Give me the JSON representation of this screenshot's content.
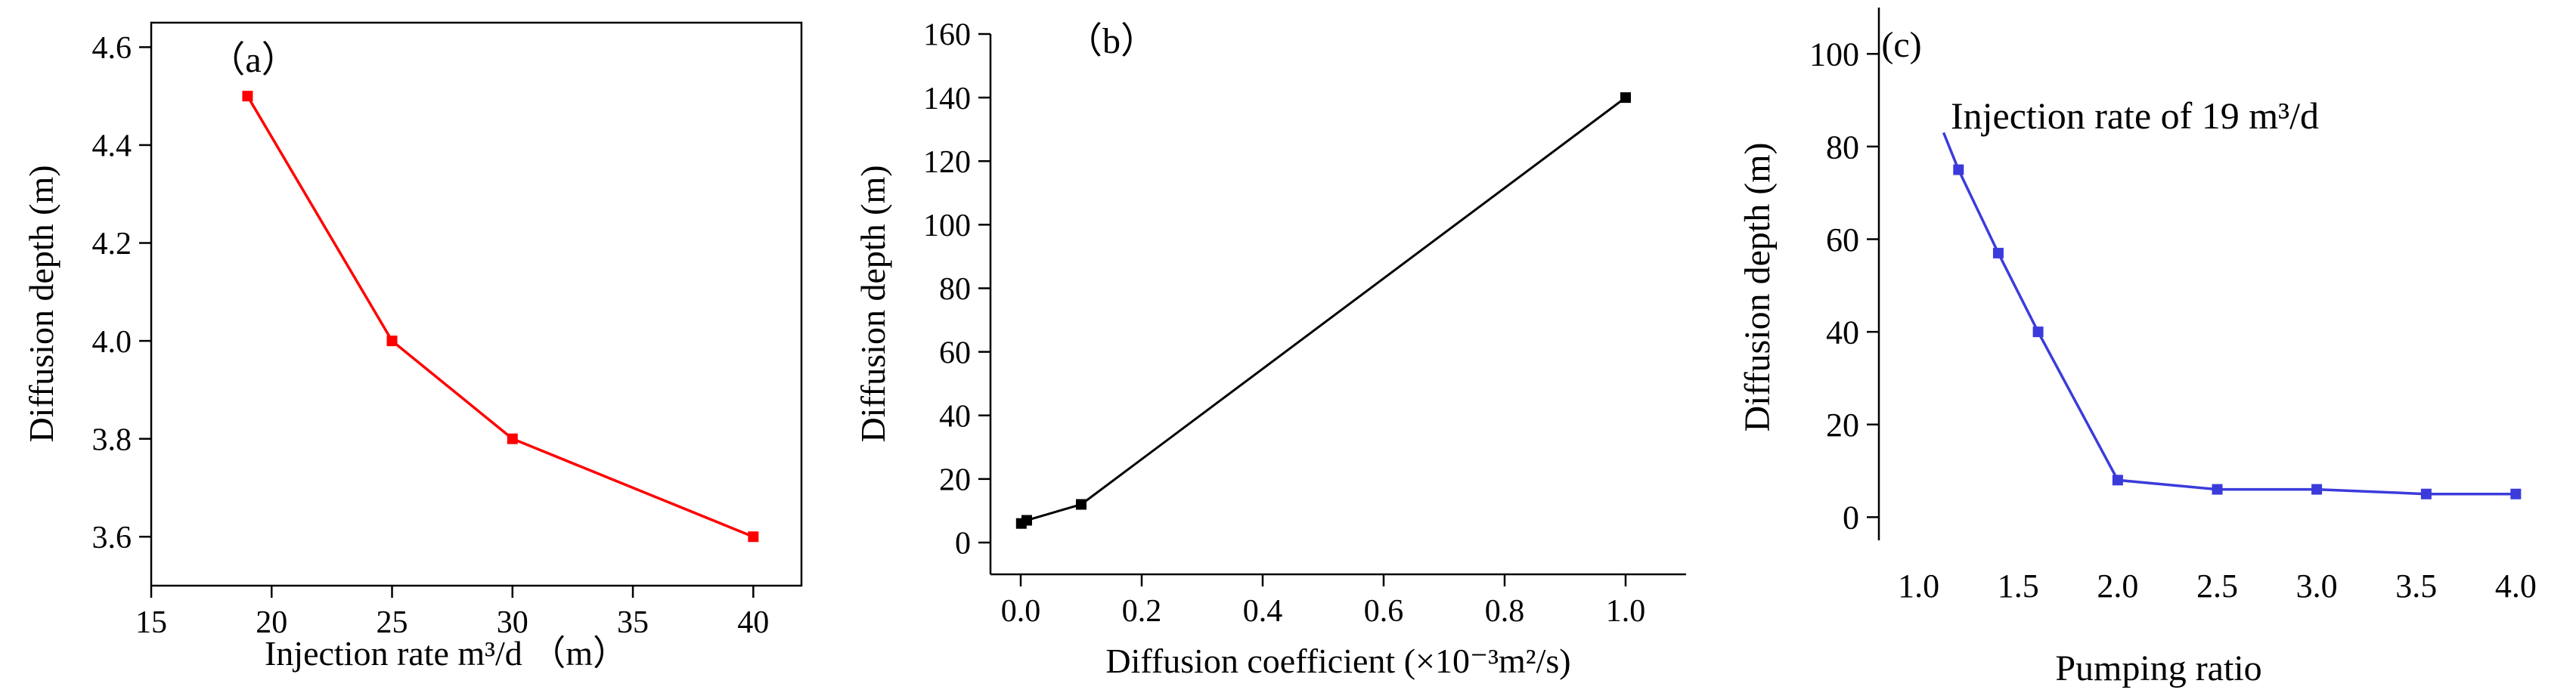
{
  "chart_data": [
    {
      "type": "line",
      "panel_label": "（a）",
      "xlabel": "Injection rate  m³/d （m）",
      "ylabel": "Diffusion depth (m)",
      "xlim": [
        15,
        42
      ],
      "ylim": [
        3.5,
        4.65
      ],
      "xticks": [
        15,
        20,
        25,
        30,
        35,
        40
      ],
      "yticks": [
        3.6,
        3.8,
        4.0,
        4.2,
        4.4,
        4.6
      ],
      "color": "#ff0000",
      "series": [
        {
          "x": [
            19,
            25,
            30,
            40
          ],
          "y": [
            4.5,
            4.0,
            3.8,
            3.6
          ]
        }
      ]
    },
    {
      "type": "line",
      "panel_label": "（b）",
      "xlabel": "Diffusion coefficient (×10⁻³m²/s)",
      "ylabel": "Diffusion depth (m)",
      "xlim": [
        -0.05,
        1.1
      ],
      "ylim": [
        -10,
        160
      ],
      "xticks": [
        0.0,
        0.2,
        0.4,
        0.6,
        0.8,
        1.0
      ],
      "yticks": [
        0,
        20,
        40,
        60,
        80,
        100,
        120,
        140,
        160
      ],
      "color": "#000000",
      "series": [
        {
          "x": [
            0.001,
            0.01,
            0.1,
            1.0
          ],
          "y": [
            6,
            7,
            12,
            140
          ]
        }
      ]
    },
    {
      "type": "line",
      "panel_label": "(c)",
      "annotation": "Injection rate of 19 m³/d",
      "xlabel": "Pumping ratio",
      "ylabel": "Diffusion depth (m)",
      "xlim": [
        0.8,
        4.2
      ],
      "ylim": [
        -5,
        110
      ],
      "xticks": [
        1.0,
        1.5,
        2.0,
        2.5,
        3.0,
        3.5,
        4.0
      ],
      "yticks": [
        0,
        20,
        40,
        60,
        80,
        100
      ],
      "color": "#3b3bdb",
      "series": [
        {
          "x": [
            1.125,
            1.2,
            1.4,
            1.6,
            2.0,
            2.5,
            3.0,
            3.55,
            4.0
          ],
          "y": [
            83,
            75,
            57,
            40,
            8,
            6,
            6,
            5,
            5
          ],
          "markers": [
            false,
            true,
            true,
            true,
            true,
            true,
            true,
            true,
            true
          ]
        }
      ]
    }
  ]
}
